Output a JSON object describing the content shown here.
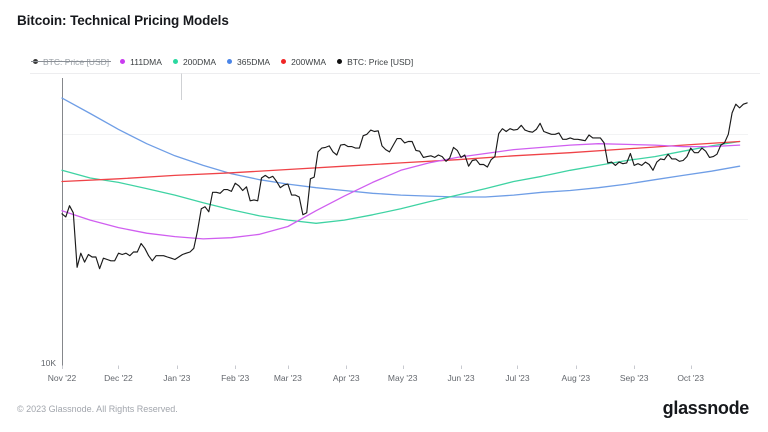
{
  "header": {
    "title": "Bitcoin: Technical Pricing Models"
  },
  "legend": {
    "items": [
      {
        "label": "BTC: Price [USD]",
        "color": "#3a3a3a",
        "disabled": true
      },
      {
        "label": "111DMA",
        "color": "#c93cf0",
        "disabled": false
      },
      {
        "label": "200DMA",
        "color": "#2bd8a0",
        "disabled": false
      },
      {
        "label": "365DMA",
        "color": "#4a85e8",
        "disabled": false
      },
      {
        "label": "200WMA",
        "color": "#f02525",
        "disabled": false
      },
      {
        "label": "BTC: Price [USD]",
        "color": "#101010",
        "disabled": false
      }
    ]
  },
  "footer": {
    "copyright": "© 2023 Glassnode. All Rights Reserved.",
    "logo_text": "glassnode"
  },
  "chart_data": {
    "type": "line",
    "title": "Bitcoin: Technical Pricing Models",
    "values_unit": "thousand USD",
    "y_axis": {
      "scale": "log",
      "tick_labels": [
        "10K"
      ],
      "gridlines_k": [
        20,
        30
      ],
      "range_k": [
        9.7,
        38
      ]
    },
    "x_axis": {
      "tick_days": [
        0,
        30,
        61,
        92,
        120,
        151,
        181,
        212,
        242,
        273,
        304,
        334
      ],
      "labels": [
        "Nov '22",
        "Dec '22",
        "Jan '23",
        "Feb '23",
        "Mar '23",
        "Apr '23",
        "May '23",
        "Jun '23",
        "Jul '23",
        "Aug '23",
        "Sep '23",
        "Oct '23"
      ],
      "start_date": "2022-11-01",
      "end_date": "2023-11-01"
    },
    "series": [
      {
        "name": "365DMA",
        "key": "dma365",
        "color": "#6f9ee6",
        "width": 1.3,
        "days": [
          0,
          15,
          30,
          45,
          60,
          75,
          90,
          105,
          120,
          135,
          150,
          165,
          180,
          195,
          210,
          225,
          240,
          255,
          270,
          285,
          300,
          315,
          330,
          345,
          360
        ],
        "values_k": [
          35.5,
          33.0,
          30.6,
          28.6,
          27.0,
          25.8,
          24.8,
          24.1,
          23.6,
          23.2,
          22.9,
          22.6,
          22.4,
          22.3,
          22.2,
          22.2,
          22.4,
          22.7,
          22.9,
          23.2,
          23.6,
          24.1,
          24.6,
          25.1,
          25.7
        ]
      },
      {
        "name": "200DMA",
        "key": "dma200",
        "color": "#3fd3a3",
        "width": 1.3,
        "days": [
          0,
          15,
          30,
          45,
          60,
          75,
          90,
          105,
          120,
          135,
          150,
          165,
          180,
          195,
          210,
          225,
          240,
          255,
          270,
          285,
          300,
          315,
          330,
          345,
          360
        ],
        "values_k": [
          25.2,
          24.3,
          23.8,
          23.1,
          22.4,
          21.6,
          20.9,
          20.3,
          19.9,
          19.6,
          19.9,
          20.4,
          21.0,
          21.7,
          22.4,
          23.1,
          23.9,
          24.5,
          25.2,
          25.8,
          26.4,
          26.9,
          27.6,
          28.3,
          28.9
        ]
      },
      {
        "name": "200WMA",
        "key": "wma200",
        "color": "#ef4348",
        "width": 1.3,
        "days": [
          0,
          30,
          60,
          90,
          120,
          150,
          180,
          210,
          240,
          270,
          300,
          330,
          360
        ],
        "values_k": [
          23.9,
          24.2,
          24.6,
          24.9,
          25.3,
          25.7,
          26.1,
          26.5,
          27.0,
          27.4,
          27.9,
          28.4,
          28.9
        ]
      },
      {
        "name": "111DMA",
        "key": "dma111",
        "color": "#d05ff0",
        "width": 1.3,
        "days": [
          0,
          15,
          30,
          45,
          60,
          75,
          90,
          105,
          120,
          135,
          150,
          165,
          180,
          195,
          210,
          225,
          240,
          255,
          270,
          285,
          300,
          315,
          330,
          345,
          360
        ],
        "values_k": [
          20.8,
          19.9,
          19.2,
          18.7,
          18.4,
          18.2,
          18.3,
          18.6,
          19.3,
          20.8,
          22.3,
          23.8,
          25.2,
          26.1,
          26.8,
          27.3,
          27.8,
          28.1,
          28.4,
          28.6,
          28.5,
          28.4,
          28.2,
          28.2,
          28.4
        ]
      },
      {
        "name": "BTC: Price [USD]",
        "key": "btc-price",
        "color": "#1a1a1a",
        "width": 1.15,
        "day_start": 0,
        "day_step": 2,
        "values_k": [
          20.5,
          20.2,
          21.3,
          20.6,
          15.9,
          17.0,
          16.3,
          16.9,
          16.7,
          16.7,
          15.8,
          16.6,
          16.5,
          16.4,
          16.4,
          17.0,
          16.9,
          17.0,
          16.8,
          17.1,
          17.1,
          17.8,
          17.4,
          16.8,
          16.4,
          16.8,
          16.8,
          16.8,
          16.7,
          16.6,
          16.5,
          16.7,
          16.9,
          17.0,
          17.1,
          17.4,
          18.9,
          21.0,
          21.2,
          20.7,
          22.7,
          22.7,
          22.6,
          23.0,
          23.0,
          22.8,
          23.7,
          23.4,
          22.9,
          23.3,
          21.8,
          21.9,
          21.8,
          24.3,
          24.6,
          24.3,
          24.5,
          23.9,
          23.2,
          23.5,
          23.6,
          22.4,
          22.4,
          22.2,
          20.4,
          20.6,
          24.2,
          24.4,
          27.5,
          28.0,
          28.1,
          28.3,
          27.5,
          27.1,
          28.4,
          28.5,
          28.2,
          28.2,
          28.0,
          28.0,
          29.7,
          29.9,
          30.5,
          30.3,
          30.4,
          28.3,
          27.8,
          27.5,
          28.4,
          29.3,
          29.3,
          28.7,
          28.9,
          28.9,
          27.7,
          27.6,
          26.8,
          26.9,
          27.0,
          26.8,
          27.1,
          26.9,
          26.3,
          26.7,
          28.1,
          27.7,
          26.8,
          27.1,
          25.7,
          26.4,
          26.5,
          25.9,
          25.9,
          25.6,
          26.5,
          26.9,
          30.0,
          30.7,
          30.3,
          30.7,
          30.5,
          30.6,
          31.2,
          30.5,
          30.3,
          30.2,
          30.6,
          31.5,
          30.3,
          30.1,
          29.9,
          29.9,
          30.1,
          29.2,
          29.2,
          29.4,
          29.2,
          29.2,
          29.1,
          29.0,
          29.8,
          29.4,
          29.4,
          29.4,
          28.7,
          26.1,
          26.2,
          25.8,
          26.2,
          26.0,
          26.1,
          27.3,
          25.8,
          26.0,
          25.8,
          26.2,
          25.9,
          25.2,
          26.2,
          26.6,
          26.5,
          27.2,
          26.6,
          26.6,
          26.3,
          26.4,
          26.9,
          28.0,
          27.4,
          27.4,
          28.0,
          27.6,
          26.8,
          26.9,
          27.2,
          28.4,
          28.7,
          29.9,
          33.1,
          34.5,
          33.9,
          34.5,
          34.7
        ]
      }
    ]
  }
}
